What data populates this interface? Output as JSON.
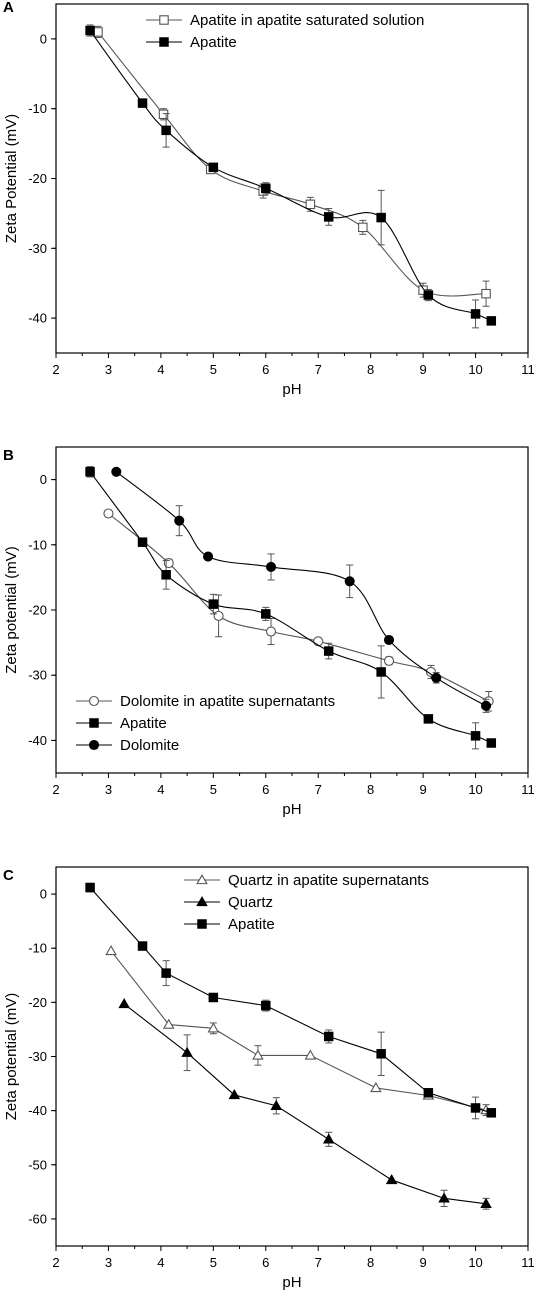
{
  "chart_data": [
    {
      "panel": "A",
      "type": "line",
      "xlabel": "pH",
      "ylabel": "Zeta Potential (mV)",
      "xlim": [
        2,
        11
      ],
      "ylim": [
        -45,
        5
      ],
      "xticks": [
        2,
        3,
        4,
        5,
        6,
        7,
        8,
        9,
        10,
        11
      ],
      "yticks": [
        0,
        -10,
        -20,
        -30,
        -40
      ],
      "legend_position": "top-right",
      "series": [
        {
          "name": "Apatite in apatite saturated solution",
          "marker": "square-open",
          "color": "#555555",
          "smooth": true,
          "x": [
            2.8,
            4.05,
            4.95,
            5.95,
            6.85,
            7.85,
            9.0,
            10.2
          ],
          "y": [
            1.0,
            -10.8,
            -18.7,
            -21.8,
            -23.7,
            -27.0,
            -36.0,
            -36.5
          ],
          "err": [
            0.8,
            0.8,
            0.5,
            1.0,
            1.0,
            1.0,
            1.0,
            1.8
          ]
        },
        {
          "name": "Apatite",
          "marker": "square-filled",
          "color": "#000000",
          "smooth": true,
          "x": [
            2.65,
            3.65,
            4.1,
            5.0,
            6.0,
            7.2,
            8.2,
            9.1,
            10.0,
            10.3
          ],
          "y": [
            1.2,
            -9.2,
            -13.1,
            -18.4,
            -21.4,
            -25.5,
            -25.6,
            -36.7,
            -39.4,
            -40.4
          ],
          "err": [
            0.8,
            0.0,
            2.4,
            0.5,
            0.8,
            1.2,
            3.9,
            0.8,
            2.0,
            0.0
          ]
        }
      ]
    },
    {
      "panel": "B",
      "type": "line",
      "xlabel": "pH",
      "ylabel": "Zeta potential (mV)",
      "xlim": [
        2,
        11
      ],
      "ylim": [
        -45,
        5
      ],
      "xticks": [
        2,
        3,
        4,
        5,
        6,
        7,
        8,
        9,
        10,
        11
      ],
      "yticks": [
        0,
        -10,
        -20,
        -30,
        -40
      ],
      "legend_position": "bottom-left",
      "series": [
        {
          "name": "Dolomite in apatite supernatants",
          "marker": "circle-open",
          "color": "#555555",
          "smooth": true,
          "x": [
            3.0,
            4.15,
            5.1,
            6.1,
            7.0,
            8.35,
            9.15,
            10.25
          ],
          "y": [
            -5.2,
            -12.8,
            -20.9,
            -23.3,
            -24.8,
            -27.8,
            -29.5,
            -34.0
          ],
          "err": [
            0.0,
            0.6,
            3.2,
            2.0,
            0.5,
            0.6,
            1.0,
            1.5
          ]
        },
        {
          "name": "Apatite",
          "marker": "square-filled",
          "color": "#000000",
          "smooth": true,
          "x": [
            2.65,
            3.65,
            4.1,
            5.0,
            6.0,
            7.2,
            8.2,
            9.1,
            10.0,
            10.3
          ],
          "y": [
            1.2,
            -9.6,
            -14.6,
            -19.1,
            -20.6,
            -26.3,
            -29.5,
            -36.7,
            -39.3,
            -40.4
          ],
          "err": [
            0.8,
            0.0,
            2.2,
            1.5,
            1.0,
            1.2,
            4.0,
            0.6,
            2.0,
            0.0
          ]
        },
        {
          "name": "Dolomite",
          "marker": "circle-filled",
          "color": "#000000",
          "smooth": true,
          "x": [
            3.15,
            4.35,
            4.9,
            6.1,
            7.6,
            8.35,
            9.25,
            10.2
          ],
          "y": [
            1.2,
            -6.3,
            -11.8,
            -13.4,
            -15.6,
            -24.6,
            -30.4,
            -34.7
          ],
          "err": [
            0.0,
            2.3,
            0.0,
            2.0,
            2.5,
            0.5,
            0.8,
            1.0
          ]
        }
      ]
    },
    {
      "panel": "C",
      "type": "line",
      "xlabel": "pH",
      "ylabel": "Zeta potential (mV)",
      "xlim": [
        2,
        11
      ],
      "ylim": [
        -65,
        5
      ],
      "xticks": [
        2,
        3,
        4,
        5,
        6,
        7,
        8,
        9,
        10,
        11
      ],
      "yticks": [
        0,
        -10,
        -20,
        -30,
        -40,
        -50,
        -60
      ],
      "legend_position": "top-right",
      "series": [
        {
          "name": "Quartz in apatite supernatants",
          "marker": "triangle-open",
          "color": "#555555",
          "smooth": false,
          "x": [
            3.05,
            4.15,
            5.0,
            5.85,
            6.85,
            8.1,
            9.1,
            10.2
          ],
          "y": [
            -10.5,
            -24.1,
            -24.8,
            -29.8,
            -29.8,
            -35.8,
            -37.2,
            -39.9
          ],
          "err": [
            0.0,
            0.0,
            1.0,
            1.8,
            0.0,
            0.0,
            0.0,
            1.0
          ]
        },
        {
          "name": "Quartz",
          "marker": "triangle-filled",
          "color": "#000000",
          "smooth": false,
          "x": [
            3.3,
            4.5,
            5.4,
            6.2,
            7.2,
            8.4,
            9.4,
            10.2
          ],
          "y": [
            -20.3,
            -29.3,
            -37.1,
            -39.1,
            -45.3,
            -52.8,
            -56.2,
            -57.2
          ],
          "err": [
            0.0,
            3.3,
            0.0,
            1.5,
            1.3,
            0.0,
            1.5,
            1.0
          ]
        },
        {
          "name": "Apatite",
          "marker": "square-filled",
          "color": "#000000",
          "smooth": false,
          "x": [
            2.65,
            3.65,
            4.1,
            5.0,
            6.0,
            7.2,
            8.2,
            9.1,
            10.0,
            10.3
          ],
          "y": [
            1.2,
            -9.6,
            -14.6,
            -19.1,
            -20.6,
            -26.3,
            -29.5,
            -36.7,
            -39.5,
            -40.4
          ],
          "err": [
            0.8,
            0.0,
            2.3,
            0.0,
            1.0,
            1.2,
            4.0,
            0.0,
            2.0,
            0.0
          ]
        }
      ]
    }
  ]
}
